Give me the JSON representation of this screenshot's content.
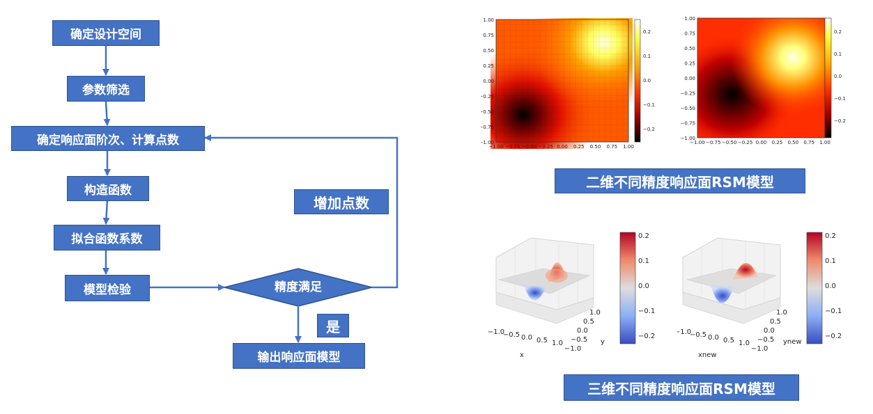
{
  "flowchart": {
    "steps": {
      "define_space": "确定设计空间",
      "screening": "参数筛选",
      "order_points": "确定响应面阶次、计算点数",
      "construct": "构造函数",
      "fit": "拟合函数系数",
      "validate": "模型检验",
      "decision": "精度满足",
      "output": "输出响应面模型"
    },
    "loop_label": "增加点数",
    "yes_label": "是"
  },
  "figures": {
    "caption_2d": "二维不同精度响应面RSM模型",
    "caption_3d": "三维不同精度响应面RSM模型",
    "heatmap_ticks_x": [
      "−1.00",
      "−0.75",
      "−0.50",
      "−0.25",
      "0.00",
      "0.25",
      "0.50",
      "0.75",
      "1.00"
    ],
    "heatmap_ticks_y": [
      "1.00",
      "0.75",
      "0.50",
      "0.25",
      "0.00",
      "−0.25",
      "−0.50",
      "−0.75",
      "−1.00"
    ],
    "colorbar_2d_a": [
      "0.2",
      "0.1",
      "0.0",
      "−0.1",
      "−0.2"
    ],
    "colorbar_2d_b": [
      "0.2",
      "0.1",
      "0.0",
      "−0.1",
      "−0.2"
    ],
    "surface_a": {
      "xlabel": "x",
      "ylabel": "y",
      "x_ticks": [
        "−1.0",
        "−0.5",
        "0.0",
        "0.5",
        "1.0"
      ],
      "y_ticks": [
        "1.0",
        "0.5",
        "0.0",
        "−0.5",
        "−1.0"
      ],
      "colorbar": [
        "0.2",
        "0.1",
        "0.0",
        "−0.1",
        "−0.2"
      ]
    },
    "surface_b": {
      "xlabel": "xnew",
      "ylabel": "ynew",
      "x_ticks": [
        "−1.0",
        "−0.5",
        "0.0",
        "0.5",
        "1.0"
      ],
      "y_ticks": [
        "1.0",
        "0.5",
        "0.0",
        "−0.5",
        "−1.0"
      ],
      "colorbar": [
        "0.2",
        "0.1",
        "0.0",
        "−0.1",
        "−0.2"
      ]
    },
    "colors": {
      "box_fill": "#4472c4",
      "box_border": "#2f528f",
      "arrow": "#4472c4"
    }
  }
}
